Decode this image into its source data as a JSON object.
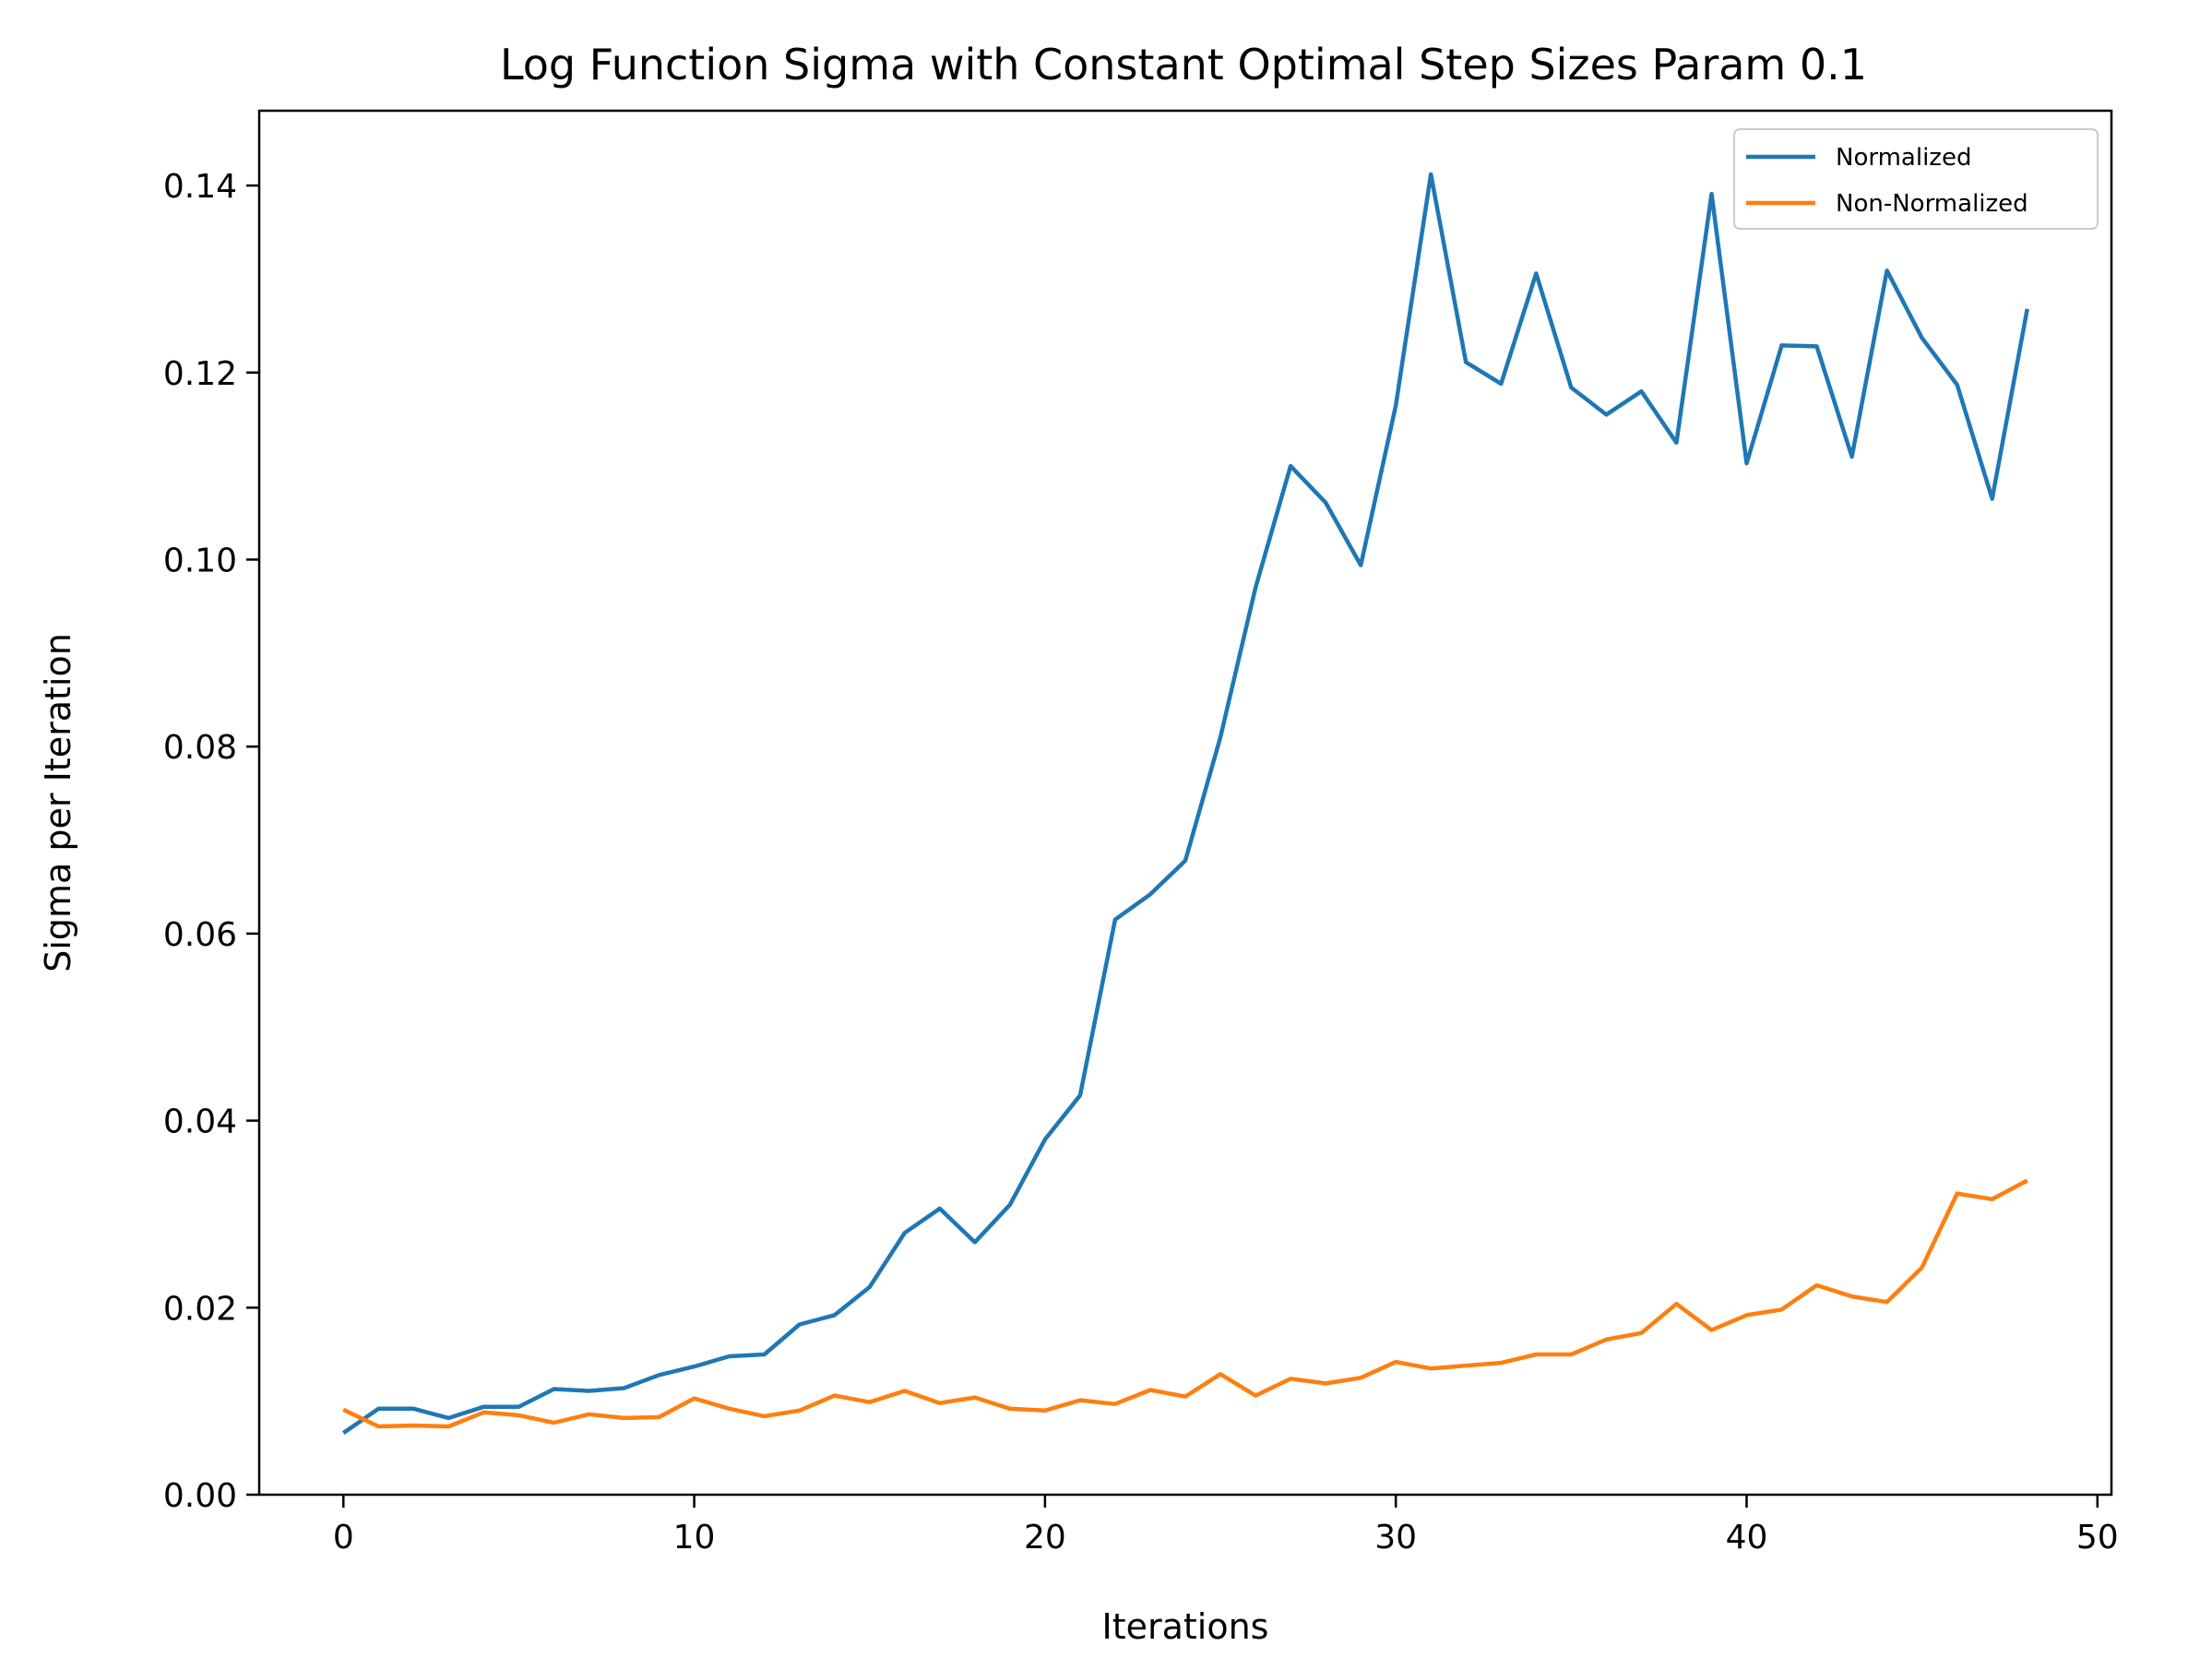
{
  "chart_data": {
    "type": "line",
    "title": "Log Function Sigma with Constant Optimal Step Sizes Param 0.1",
    "xlabel": "Iterations",
    "ylabel": "Sigma per Iteration",
    "xlim": [
      -2.4,
      50.4
    ],
    "ylim": [
      0,
      0.148
    ],
    "x_ticks": [
      0,
      10,
      20,
      30,
      40,
      50
    ],
    "x_tick_labels": [
      "0",
      "10",
      "20",
      "30",
      "40",
      "50"
    ],
    "y_ticks": [
      0,
      0.02,
      0.04,
      0.06,
      0.08,
      0.1,
      0.12,
      0.14
    ],
    "y_tick_labels": [
      "0.00",
      "0.02",
      "0.04",
      "0.06",
      "0.08",
      "0.10",
      "0.12",
      "0.14"
    ],
    "grid": false,
    "legend_position": "top-right",
    "x": [
      0,
      1,
      2,
      3,
      4,
      5,
      6,
      7,
      8,
      9,
      10,
      11,
      12,
      13,
      14,
      15,
      16,
      17,
      18,
      19,
      20,
      21,
      22,
      23,
      24,
      25,
      26,
      27,
      28,
      29,
      30,
      31,
      32,
      33,
      34,
      35,
      36,
      37,
      38,
      39,
      40,
      41,
      42,
      43,
      44,
      45,
      46,
      47,
      48
    ],
    "series": [
      {
        "name": "Normalized",
        "color": "#1f77b4",
        "values": [
          0.0066,
          0.0092,
          0.0092,
          0.0082,
          0.0094,
          0.0094,
          0.0113,
          0.0111,
          0.0114,
          0.0128,
          0.0137,
          0.0148,
          0.015,
          0.0182,
          0.0192,
          0.0222,
          0.028,
          0.0306,
          0.027,
          0.031,
          0.038,
          0.0427,
          0.0615,
          0.0642,
          0.0678,
          0.081,
          0.097,
          0.11,
          0.1061,
          0.0994,
          0.1165,
          0.1412,
          0.1211,
          0.1188,
          0.1306,
          0.1184,
          0.1155,
          0.118,
          0.1125,
          0.1391,
          0.1103,
          0.1229,
          0.1228,
          0.111,
          0.1309,
          0.1237,
          0.1187,
          0.1065,
          0.1268
        ]
      },
      {
        "name": "Non-Normalized",
        "color": "#ff7f0e",
        "values": [
          0.0091,
          0.0073,
          0.0074,
          0.0073,
          0.0088,
          0.0085,
          0.0077,
          0.0086,
          0.0082,
          0.0083,
          0.0103,
          0.0092,
          0.0084,
          0.009,
          0.0106,
          0.0099,
          0.0111,
          0.0098,
          0.0104,
          0.0092,
          0.009,
          0.0101,
          0.0097,
          0.0112,
          0.0105,
          0.0129,
          0.0106,
          0.0124,
          0.0119,
          0.0125,
          0.0142,
          0.0135,
          0.0138,
          0.0141,
          0.015,
          0.015,
          0.0166,
          0.0173,
          0.0204,
          0.0176,
          0.0192,
          0.0198,
          0.0224,
          0.0212,
          0.0206,
          0.0243,
          0.0322,
          0.0316,
          0.0336
        ]
      }
    ]
  }
}
